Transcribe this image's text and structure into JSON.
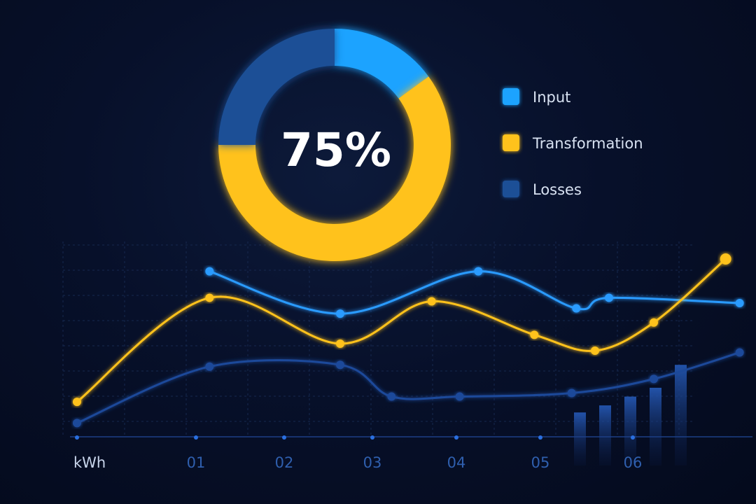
{
  "chart_data": [
    {
      "type": "pie",
      "variant": "donut",
      "center_label": "75%",
      "slices": [
        {
          "name": "Input",
          "value": 15,
          "color": "#1fa3ff"
        },
        {
          "name": "Transformation",
          "value": 60,
          "color": "#ffc21a"
        },
        {
          "name": "Losses",
          "value": 25,
          "color": "#1d4f96"
        }
      ],
      "legend": "right"
    },
    {
      "type": "line",
      "xlabel": "kWh",
      "x_ticks": [
        "01",
        "02",
        "03",
        "04",
        "05",
        "06"
      ],
      "xlim": [
        0,
        7.2
      ],
      "ylim": [
        0,
        10
      ],
      "grid": true,
      "series": [
        {
          "name": "Input",
          "color": "#2b9bff",
          "points": [
            [
              1.42,
              9.3
            ],
            [
              2.82,
              6.9
            ],
            [
              4.3,
              9.3
            ],
            [
              5.35,
              7.2
            ],
            [
              5.7,
              7.8
            ],
            [
              7.1,
              7.5
            ]
          ]
        },
        {
          "name": "Transformation",
          "color": "#ffc21a",
          "points": [
            [
              0.0,
              1.9
            ],
            [
              1.42,
              7.8
            ],
            [
              2.82,
              5.2
            ],
            [
              3.8,
              7.6
            ],
            [
              4.9,
              5.7
            ],
            [
              5.55,
              4.8
            ],
            [
              6.18,
              6.4
            ],
            [
              6.95,
              10.0
            ]
          ]
        },
        {
          "name": "Losses",
          "color": "#1e4a9a",
          "points": [
            [
              0.0,
              0.7
            ],
            [
              1.42,
              3.9
            ],
            [
              2.82,
              4.0
            ],
            [
              3.37,
              2.2
            ],
            [
              4.1,
              2.2
            ],
            [
              5.3,
              2.4
            ],
            [
              6.18,
              3.2
            ],
            [
              7.1,
              4.7
            ]
          ]
        }
      ],
      "bars": {
        "color": "#1f4fa0",
        "values": [
          1.3,
          1.7,
          2.2,
          2.7,
          4.0
        ]
      }
    }
  ]
}
